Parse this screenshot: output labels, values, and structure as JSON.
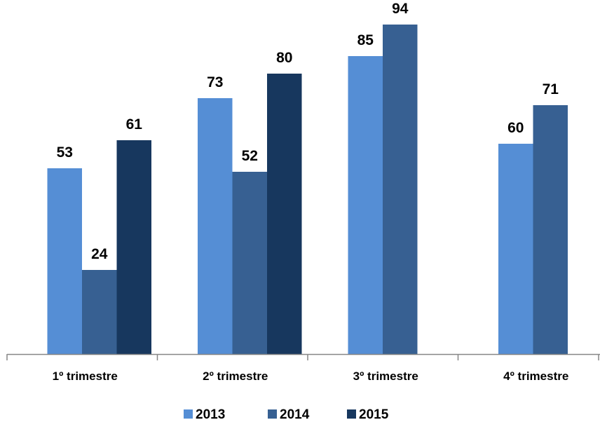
{
  "chart_data": {
    "type": "bar",
    "categories": [
      "1º trimestre",
      "2º trimestre",
      "3º trimestre",
      "4º trimestre"
    ],
    "series": [
      {
        "name": "2013",
        "color": "#558ed5",
        "values": [
          53,
          73,
          85,
          60
        ]
      },
      {
        "name": "2014",
        "color": "#376092",
        "values": [
          24,
          52,
          94,
          71
        ]
      },
      {
        "name": "2015",
        "color": "#17375e",
        "values": [
          61,
          80,
          null,
          null
        ]
      }
    ],
    "ylim": [
      0,
      100
    ],
    "data_labels": true,
    "legend_position": "bottom",
    "grid": false
  }
}
